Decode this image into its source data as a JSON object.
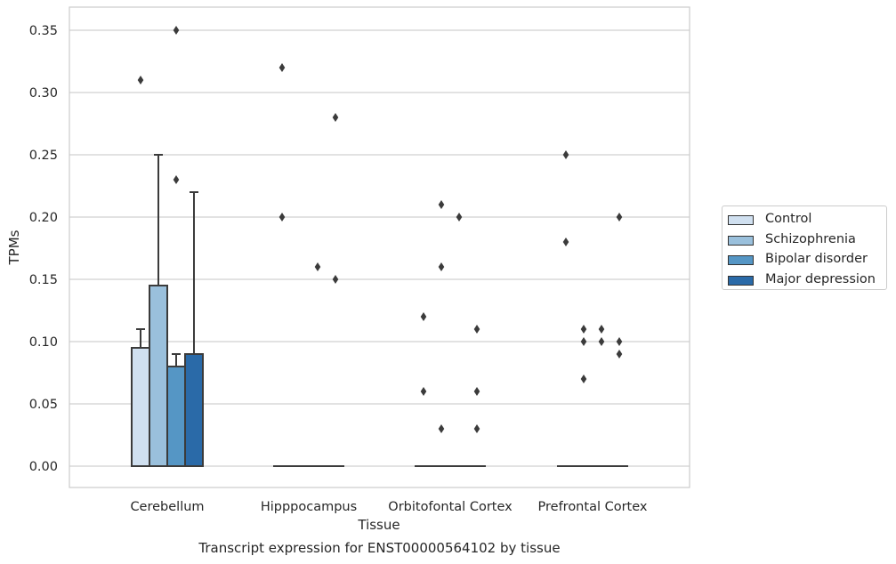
{
  "chart_data": {
    "type": "box",
    "xlabel": "Tissue",
    "ylabel": "TPMs",
    "caption": "Transcript expression for ENST00000564102 by tissue",
    "ylim": [
      -0.018,
      0.368
    ],
    "yticks": [
      "0.00",
      "0.05",
      "0.10",
      "0.15",
      "0.20",
      "0.25",
      "0.30",
      "0.35"
    ],
    "grid": true,
    "legend_position": "right",
    "categories": [
      "Cerebellum",
      "Hipppocampus",
      "Orbitofontal Cortex",
      "Prefrontal Cortex"
    ],
    "series": [
      {
        "name": "Control",
        "color": "#d0e0f0",
        "boxes": [
          {
            "q1": 0,
            "q3": 0.095,
            "median": 0,
            "whisker_low": 0,
            "whisker_high": 0.11
          },
          {
            "q1": 0,
            "q3": 0,
            "median": 0,
            "whisker_low": 0,
            "whisker_high": 0
          },
          {
            "q1": 0,
            "q3": 0,
            "median": 0,
            "whisker_low": 0,
            "whisker_high": 0
          },
          {
            "q1": 0,
            "q3": 0,
            "median": 0,
            "whisker_low": 0,
            "whisker_high": 0
          }
        ],
        "outliers": [
          [
            0.31
          ],
          [
            0.32,
            0.2
          ],
          [
            0.12,
            0.06
          ],
          [
            0.25,
            0.18
          ]
        ]
      },
      {
        "name": "Schizophrenia",
        "color": "#9ac0dc",
        "boxes": [
          {
            "q1": 0,
            "q3": 0.145,
            "median": 0,
            "whisker_low": 0,
            "whisker_high": 0.25
          },
          {
            "q1": 0,
            "q3": 0,
            "median": 0,
            "whisker_low": 0,
            "whisker_high": 0
          },
          {
            "q1": 0,
            "q3": 0,
            "median": 0,
            "whisker_low": 0,
            "whisker_high": 0
          },
          {
            "q1": 0,
            "q3": 0,
            "median": 0,
            "whisker_low": 0,
            "whisker_high": 0
          }
        ],
        "outliers": [
          [],
          [],
          [
            0.21,
            0.16,
            0.03
          ],
          [
            0.11,
            0.1,
            0.07
          ]
        ]
      },
      {
        "name": "Bipolar disorder",
        "color": "#5596c5",
        "boxes": [
          {
            "q1": 0,
            "q3": 0.08,
            "median": 0,
            "whisker_low": 0,
            "whisker_high": 0.09
          },
          {
            "q1": 0,
            "q3": 0,
            "median": 0,
            "whisker_low": 0,
            "whisker_high": 0
          },
          {
            "q1": 0,
            "q3": 0,
            "median": 0,
            "whisker_low": 0,
            "whisker_high": 0
          },
          {
            "q1": 0,
            "q3": 0,
            "median": 0,
            "whisker_low": 0,
            "whisker_high": 0
          }
        ],
        "outliers": [
          [
            0.35,
            0.23
          ],
          [
            0.16
          ],
          [
            0.2
          ],
          [
            0.11,
            0.1
          ]
        ]
      },
      {
        "name": "Major depression",
        "color": "#2a6aa8",
        "boxes": [
          {
            "q1": 0,
            "q3": 0.09,
            "median": 0,
            "whisker_low": 0,
            "whisker_high": 0.22
          },
          {
            "q1": 0,
            "q3": 0,
            "median": 0,
            "whisker_low": 0,
            "whisker_high": 0
          },
          {
            "q1": 0,
            "q3": 0,
            "median": 0,
            "whisker_low": 0,
            "whisker_high": 0
          },
          {
            "q1": 0,
            "q3": 0,
            "median": 0,
            "whisker_low": 0,
            "whisker_high": 0
          }
        ],
        "outliers": [
          [],
          [
            0.28,
            0.15
          ],
          [
            0.11,
            0.06,
            0.03
          ],
          [
            0.2,
            0.1,
            0.09
          ]
        ]
      }
    ]
  }
}
